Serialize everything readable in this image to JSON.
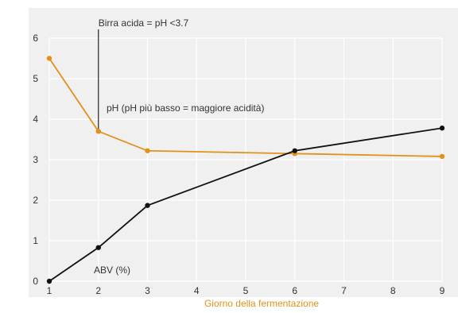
{
  "chart_data": {
    "type": "line",
    "title": "",
    "xlabel": "Giorno della fermentazione",
    "ylabel": "",
    "xlim": [
      1,
      9
    ],
    "ylim": [
      0,
      6
    ],
    "x_ticks": [
      "1",
      "2",
      "3",
      "4",
      "5",
      "6",
      "7",
      "8",
      "9"
    ],
    "y_ticks": [
      "0",
      "1",
      "2",
      "3",
      "4",
      "5",
      "6"
    ],
    "grid": true,
    "legend": "none",
    "background": "#f0f0f0",
    "series": [
      {
        "name": "pH (pH più basso = maggiore acidità)",
        "color": "#e0921a",
        "x": [
          1,
          2,
          3,
          6,
          9
        ],
        "y": [
          5.5,
          3.7,
          3.22,
          3.15,
          3.08
        ]
      },
      {
        "name": "ABV (%)",
        "color": "#111111",
        "x": [
          1,
          2,
          3,
          6,
          9
        ],
        "y": [
          0,
          0.83,
          1.87,
          3.22,
          3.78
        ]
      }
    ],
    "annotations": [
      {
        "text": "Birra acida = pH <3.7",
        "x": 2,
        "y": 3.7
      }
    ],
    "xlabel_color": "#e0921a"
  }
}
